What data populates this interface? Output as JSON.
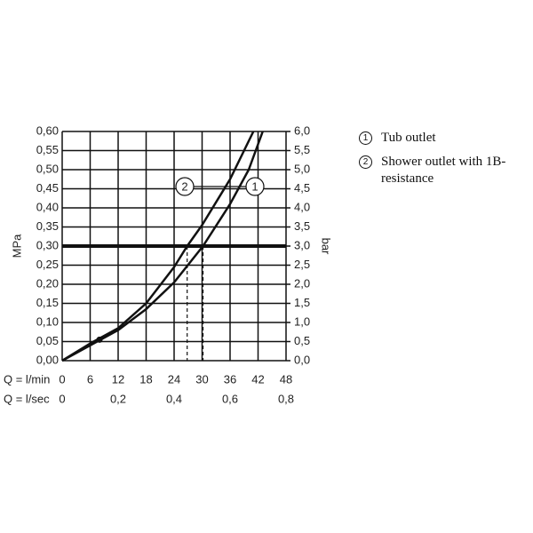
{
  "chart_data": {
    "type": "line",
    "y_label": "MPa",
    "y2_label": "bar",
    "x_label": "Q = l/min",
    "x2_label": "Q = l/sec",
    "xlim": [
      0,
      48
    ],
    "xticks": [
      0,
      6,
      12,
      18,
      24,
      30,
      36,
      42,
      48
    ],
    "x2lim": [
      0,
      0.8
    ],
    "x2ticks": [
      0,
      {
        "value": 0.2,
        "label": "0,2"
      },
      {
        "value": 0.4,
        "label": "0,4"
      },
      {
        "value": 0.6,
        "label": "0,6"
      },
      {
        "value": 0.8,
        "label": "0,8"
      }
    ],
    "ylim": [
      0,
      0.6
    ],
    "yticks": [
      {
        "value": 0,
        "label": "0,00"
      },
      {
        "value": 0.05,
        "label": "0,05"
      },
      {
        "value": 0.1,
        "label": "0,10"
      },
      {
        "value": 0.15,
        "label": "0,15"
      },
      {
        "value": 0.2,
        "label": "0,20"
      },
      {
        "value": 0.25,
        "label": "0,25"
      },
      {
        "value": 0.3,
        "label": "0,30"
      },
      {
        "value": 0.35,
        "label": "0,35"
      },
      {
        "value": 0.4,
        "label": "0,40"
      },
      {
        "value": 0.45,
        "label": "0,45"
      },
      {
        "value": 0.5,
        "label": "0,50"
      },
      {
        "value": 0.55,
        "label": "0,55"
      },
      {
        "value": 0.6,
        "label": "0,60"
      }
    ],
    "y2lim": [
      0,
      6
    ],
    "y2ticks": [
      {
        "value": 0,
        "label": "0,0"
      },
      {
        "value": 0.5,
        "label": "0,5"
      },
      {
        "value": 1,
        "label": "1,0"
      },
      {
        "value": 1.5,
        "label": "1,5"
      },
      {
        "value": 2,
        "label": "2,0"
      },
      {
        "value": 2.5,
        "label": "2,5"
      },
      {
        "value": 3,
        "label": "3,0"
      },
      {
        "value": 3.5,
        "label": "3,5"
      },
      {
        "value": 4,
        "label": "4,0"
      },
      {
        "value": 4.5,
        "label": "4,5"
      },
      {
        "value": 5,
        "label": "5,0"
      },
      {
        "value": 5.5,
        "label": "5,5"
      },
      {
        "value": 6,
        "label": "6,0"
      }
    ],
    "grid": true,
    "reference_y": 0.3,
    "drop_lines_x": [
      26.8,
      30.2
    ],
    "highlight_point": {
      "x": 8,
      "y": 0.055
    },
    "series": [
      {
        "name": "Tub outlet",
        "marker_label": "1",
        "color": "#111111",
        "x": [
          0,
          6,
          12,
          18,
          24,
          30.2,
          36,
          40,
          43
        ],
        "values": [
          0,
          0.04,
          0.08,
          0.135,
          0.205,
          0.3,
          0.41,
          0.5,
          0.6
        ]
      },
      {
        "name": "Shower outlet with 1B-resistance",
        "marker_label": "2",
        "color": "#111111",
        "x": [
          0,
          6,
          12,
          18,
          24,
          26.8,
          30,
          36,
          41
        ],
        "values": [
          0,
          0.045,
          0.085,
          0.15,
          0.245,
          0.3,
          0.355,
          0.475,
          0.6
        ]
      }
    ]
  }
}
